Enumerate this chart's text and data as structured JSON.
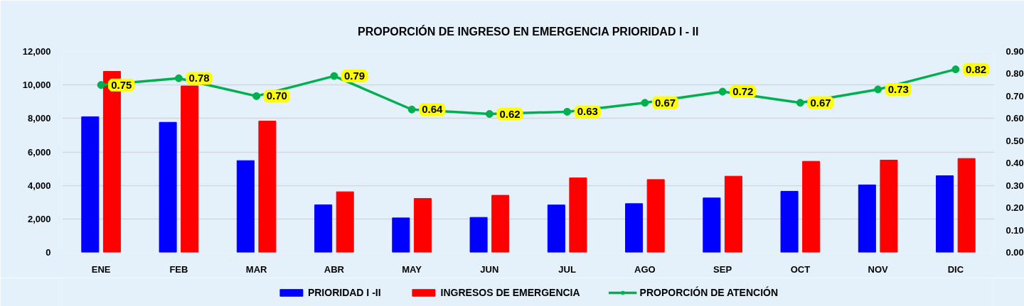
{
  "chart_data": {
    "type": "bar",
    "title": "PROPORCIÓN DE INGRESO EN EMERGENCIA PRIORIDAD I - II",
    "categories": [
      "ENE",
      "FEB",
      "MAR",
      "ABR",
      "MAY",
      "JUN",
      "JUL",
      "AGO",
      "SEP",
      "OCT",
      "NOV",
      "DIC"
    ],
    "series": [
      {
        "name": "PRIORIDAD I -II",
        "color": "#0000ff",
        "values": [
          8100,
          7770,
          5480,
          2840,
          2060,
          2090,
          2830,
          2910,
          3250,
          3650,
          4030,
          4580
        ]
      },
      {
        "name": "INGRESOS DE EMERGENCIA",
        "color": "#ff0000",
        "values": [
          10810,
          9940,
          7840,
          3620,
          3220,
          3410,
          4450,
          4350,
          4550,
          5440,
          5510,
          5610
        ]
      },
      {
        "name": "PROPORCIÓN DE ATENCIÓN",
        "type": "line",
        "axis": "y2",
        "color": "#00b050",
        "marker": "circle",
        "values": [
          0.75,
          0.78,
          0.7,
          0.79,
          0.64,
          0.62,
          0.63,
          0.67,
          0.72,
          0.67,
          0.73,
          0.82
        ],
        "value_labels": [
          "0.75",
          "0.78",
          "0.70",
          "0.79",
          "0.64",
          "0.62",
          "0.63",
          "0.67",
          "0.72",
          "0.67",
          "0.73",
          "0.82"
        ]
      }
    ],
    "ylim": [
      0,
      12000
    ],
    "yticks": [
      0,
      {
        "value": 2000,
        "label": "2,000"
      },
      {
        "value": 4000,
        "label": "4,000"
      },
      {
        "value": 6000,
        "label": "6,000"
      },
      {
        "value": 8000,
        "label": "8,000"
      },
      {
        "value": 10000,
        "label": "10,000"
      },
      {
        "value": 12000,
        "label": "12,000"
      }
    ],
    "y2lim": [
      0,
      0.9
    ],
    "y2ticks": [
      {
        "value": 0,
        "label": "0.00"
      },
      {
        "value": 0.1,
        "label": "0.10"
      },
      {
        "value": 0.2,
        "label": "0.20"
      },
      {
        "value": 0.3,
        "label": "0.30"
      },
      {
        "value": 0.4,
        "label": "0.40"
      },
      {
        "value": 0.5,
        "label": "0.50"
      },
      {
        "value": 0.6,
        "label": "0.60"
      },
      {
        "value": 0.7,
        "label": "0.70"
      },
      {
        "value": 0.8,
        "label": "0.80"
      },
      {
        "value": 0.9,
        "label": "0.90"
      }
    ],
    "grid": "y",
    "legend": "bottom"
  }
}
